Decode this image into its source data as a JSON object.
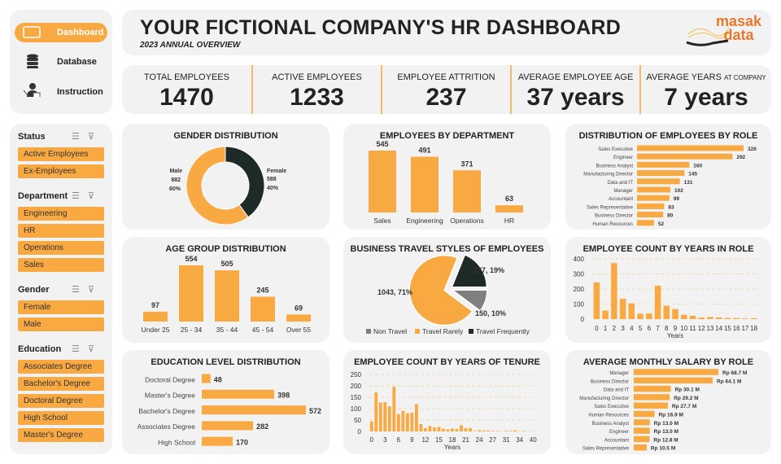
{
  "colors": {
    "accent": "#f9a942",
    "dark": "#1e2a28",
    "grey": "#7f7f7f",
    "panel": "#f2f2f2"
  },
  "nav": [
    {
      "label": "Dashboard",
      "icon": "monitor-icon",
      "active": true
    },
    {
      "label": "Database",
      "icon": "database-icon"
    },
    {
      "label": "Instruction",
      "icon": "presenter-icon"
    }
  ],
  "filters": [
    {
      "title": "Status",
      "items": [
        "Active Employees",
        "Ex-Employees"
      ]
    },
    {
      "title": "Department",
      "items": [
        "Engineering",
        "HR",
        "Operations",
        "Sales"
      ]
    },
    {
      "title": "Gender",
      "items": [
        "Female",
        "Male"
      ]
    },
    {
      "title": "Education",
      "items": [
        "Associates Degree",
        "Bachelor's Degree",
        "Doctoral Degree",
        "High School",
        "Master's Degree"
      ]
    }
  ],
  "header": {
    "title": "YOUR FICTIONAL COMPANY'S HR DASHBOARD",
    "subtitle": "2023 ANNUAL OVERVIEW",
    "logo_text": [
      "masak",
      "data"
    ]
  },
  "kpis": [
    {
      "label": "TOTAL EMPLOYEES",
      "value": "1470"
    },
    {
      "label": "ACTIVE EMPLOYEES",
      "value": "1233"
    },
    {
      "label": "EMPLOYEE ATTRITION",
      "value": "237"
    },
    {
      "label": "AVERAGE EMPLOYEE AGE",
      "value": "37 years"
    },
    {
      "label": "AVERAGE YEARS",
      "label_small": "AT COMPANY",
      "value": "7 years"
    }
  ],
  "chart_data": [
    {
      "id": "gender",
      "type": "pie",
      "title": "GENDER DISTRIBUTION",
      "donut": true,
      "slices": [
        {
          "name": "Female",
          "value": 588,
          "pct": "40%"
        },
        {
          "name": "Male",
          "value": 882,
          "pct": "60%"
        }
      ]
    },
    {
      "id": "dept",
      "type": "bar",
      "title": "EMPLOYEES BY DEPARTMENT",
      "categories": [
        "Sales",
        "Engineering",
        "Operations",
        "HR"
      ],
      "values": [
        545,
        491,
        371,
        63
      ]
    },
    {
      "id": "role",
      "type": "bar",
      "orientation": "horizontal",
      "title": "DISTRIBUTION  OF EMPLOYEES BY ROLE",
      "categories": [
        "Sales Executive",
        "Engineer",
        "Business Analyst",
        "Manufacturing Director",
        "Data and IT",
        "Manager",
        "Accountant",
        "Sales Representative",
        "Business Director",
        "Human Resources"
      ],
      "values": [
        326,
        292,
        160,
        145,
        131,
        102,
        99,
        83,
        80,
        52
      ]
    },
    {
      "id": "age",
      "type": "bar",
      "title": "AGE GROUP DISTRIBUTION",
      "categories": [
        "Under 25",
        "25 - 34",
        "35 - 44",
        "45 - 54",
        "Over 55"
      ],
      "values": [
        97,
        554,
        505,
        245,
        69
      ]
    },
    {
      "id": "travel",
      "type": "pie",
      "title": "BUSINESS TRAVEL STYLES OF EMPLOYEES",
      "slices": [
        {
          "name": "Travel Frequently",
          "value": 277,
          "label": "277, 19%"
        },
        {
          "name": "Non Travel",
          "value": 150,
          "label": "150, 10%"
        },
        {
          "name": "Travel Rarely",
          "value": 1043,
          "label": "1043, 71%"
        }
      ],
      "legend": [
        "Non Travel",
        "Travel Rarely",
        "Travel Frequently"
      ],
      "legend_position": "bottom"
    },
    {
      "id": "yrole",
      "type": "bar",
      "title": "EMPLOYEE COUNT BY YEARS IN ROLE",
      "xlabel": "Years",
      "ylim": [
        0,
        400
      ],
      "yticks": [
        0,
        100,
        200,
        300,
        400
      ],
      "grid": true,
      "categories": [
        "0",
        "1",
        "2",
        "3",
        "4",
        "5",
        "6",
        "7",
        "8",
        "9",
        "10",
        "11",
        "12",
        "13",
        "14",
        "15",
        "16",
        "17",
        "18"
      ],
      "values": [
        244,
        57,
        372,
        135,
        104,
        36,
        37,
        222,
        89,
        67,
        29,
        22,
        10,
        14,
        11,
        8,
        7,
        4,
        6
      ]
    },
    {
      "id": "edu",
      "type": "bar",
      "orientation": "horizontal",
      "title": "EDUCATION LEVEL DISTRIBUTION",
      "categories": [
        "Doctoral Degree",
        "Master's Degree",
        "Bachelor's Degree",
        "Associates Degree",
        "High School"
      ],
      "values": [
        48,
        398,
        572,
        282,
        170
      ]
    },
    {
      "id": "tenure",
      "type": "bar",
      "title": "EMPLOYEE COUNT BY YEARS OF TENURE",
      "xlabel": "Years",
      "ylim": [
        0,
        250
      ],
      "yticks": [
        0,
        50,
        100,
        150,
        200,
        250
      ],
      "grid": true,
      "categories": [
        "0",
        "1",
        "2",
        "3",
        "4",
        "5",
        "6",
        "7",
        "8",
        "9",
        "10",
        "11",
        "12",
        "13",
        "14",
        "15",
        "16",
        "17",
        "18",
        "19",
        "20",
        "21",
        "22",
        "23",
        "24",
        "25",
        "26",
        "27",
        "29",
        "30",
        "31",
        "32",
        "33",
        "34",
        "36",
        "37",
        "40"
      ],
      "values": [
        44,
        171,
        127,
        128,
        110,
        196,
        76,
        90,
        80,
        82,
        120,
        32,
        14,
        24,
        18,
        20,
        12,
        9,
        13,
        11,
        27,
        14,
        15,
        2,
        6,
        4,
        4,
        2,
        2,
        1,
        3,
        3,
        5,
        1,
        2,
        1,
        1
      ],
      "tick_labels": [
        "0",
        "3",
        "6",
        "9",
        "12",
        "15",
        "18",
        "21",
        "24",
        "27",
        "31",
        "34",
        "40"
      ]
    },
    {
      "id": "salary",
      "type": "bar",
      "orientation": "horizontal",
      "title": "AVERAGE MONTHLY SALARY BY ROLE",
      "categories": [
        "Manager",
        "Business Director",
        "Data and IT",
        "Manufacturing Director",
        "Sales Executive",
        "Human Resources",
        "Business Analyst",
        "Engineer",
        "Accountant",
        "Sales Representative"
      ],
      "values": [
        68.7,
        64.1,
        30.1,
        29.2,
        27.7,
        16.9,
        13.0,
        13.0,
        12.8,
        10.5
      ],
      "labels": [
        "Rp 68.7  M",
        "Rp 64.1  M",
        "Rp 30.1  M",
        "Rp 29.2  M",
        "Rp 27.7  M",
        "Rp 16.9  M",
        "Rp 13.0  M",
        "Rp 13.0  M",
        "Rp 12.8  M",
        "Rp 10.5  M"
      ]
    }
  ]
}
